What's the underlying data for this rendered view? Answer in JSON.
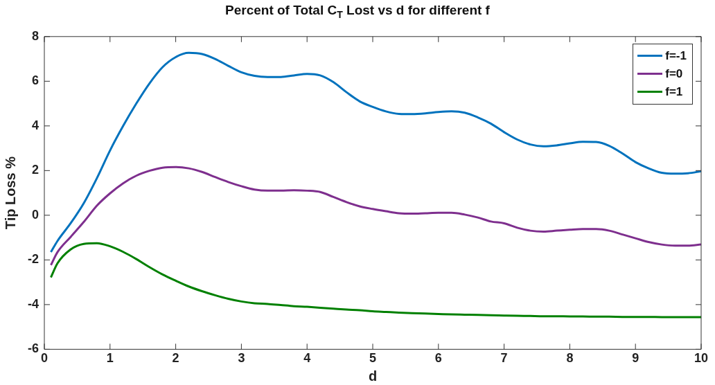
{
  "chart_data": {
    "type": "line",
    "title": "Percent of Total C$_{T}$ Lost vs d for different f",
    "xlabel": "d",
    "ylabel": "Tip Loss %",
    "x": [
      0.1,
      0.2,
      0.4,
      0.6,
      0.8,
      1.0,
      1.2,
      1.4,
      1.6,
      1.8,
      2.0,
      2.2,
      2.4,
      2.6,
      2.8,
      3.0,
      3.2,
      3.4,
      3.6,
      3.8,
      4.0,
      4.2,
      4.4,
      4.6,
      4.8,
      5.0,
      5.2,
      5.4,
      5.6,
      5.8,
      6.0,
      6.2,
      6.4,
      6.6,
      6.8,
      7.0,
      7.2,
      7.4,
      7.6,
      7.8,
      8.0,
      8.2,
      8.4,
      8.6,
      8.8,
      9.0,
      9.2,
      9.4,
      9.6,
      9.8,
      10.0
    ],
    "series": [
      {
        "name": "f=-1",
        "color": "#0072bd",
        "values": [
          -1.65,
          -1.15,
          -0.36,
          0.54,
          1.66,
          2.9,
          4.0,
          5.0,
          5.9,
          6.63,
          7.08,
          7.27,
          7.22,
          7.0,
          6.69,
          6.4,
          6.24,
          6.19,
          6.19,
          6.26,
          6.33,
          6.26,
          5.96,
          5.51,
          5.1,
          4.85,
          4.65,
          4.54,
          4.53,
          4.56,
          4.62,
          4.65,
          4.59,
          4.38,
          4.1,
          3.72,
          3.39,
          3.17,
          3.09,
          3.13,
          3.22,
          3.29,
          3.28,
          3.11,
          2.77,
          2.38,
          2.1,
          1.9,
          1.86,
          1.88,
          1.97
        ]
      },
      {
        "name": "f=0",
        "color": "#7e2f8e",
        "values": [
          -2.23,
          -1.65,
          -0.97,
          -0.3,
          0.43,
          0.98,
          1.43,
          1.77,
          1.99,
          2.13,
          2.16,
          2.1,
          1.94,
          1.71,
          1.49,
          1.3,
          1.15,
          1.1,
          1.1,
          1.12,
          1.1,
          1.04,
          0.82,
          0.59,
          0.4,
          0.28,
          0.18,
          0.09,
          0.07,
          0.09,
          0.11,
          0.11,
          0.03,
          -0.1,
          -0.28,
          -0.36,
          -0.56,
          -0.69,
          -0.73,
          -0.69,
          -0.65,
          -0.62,
          -0.62,
          -0.69,
          -0.86,
          -1.03,
          -1.2,
          -1.31,
          -1.36,
          -1.36,
          -1.31
        ]
      },
      {
        "name": "f=1",
        "color": "#008000",
        "values": [
          -2.78,
          -2.15,
          -1.53,
          -1.28,
          -1.25,
          -1.39,
          -1.64,
          -1.96,
          -2.32,
          -2.65,
          -2.93,
          -3.19,
          -3.4,
          -3.58,
          -3.74,
          -3.86,
          -3.94,
          -3.97,
          -4.02,
          -4.07,
          -4.1,
          -4.14,
          -4.18,
          -4.22,
          -4.25,
          -4.3,
          -4.33,
          -4.36,
          -4.38,
          -4.4,
          -4.42,
          -4.44,
          -4.45,
          -4.46,
          -4.48,
          -4.49,
          -4.5,
          -4.51,
          -4.52,
          -4.52,
          -4.53,
          -4.53,
          -4.54,
          -4.54,
          -4.55,
          -4.55,
          -4.55,
          -4.56,
          -4.56,
          -4.56,
          -4.56
        ]
      }
    ],
    "xlim": [
      0,
      10
    ],
    "xticks": [
      0,
      1,
      2,
      3,
      4,
      5,
      6,
      7,
      8,
      9,
      10
    ],
    "ylim": [
      -6,
      8
    ],
    "yticks": [
      -6,
      -4,
      -2,
      0,
      2,
      4,
      6,
      8
    ],
    "legend": "top right",
    "grid": false
  }
}
